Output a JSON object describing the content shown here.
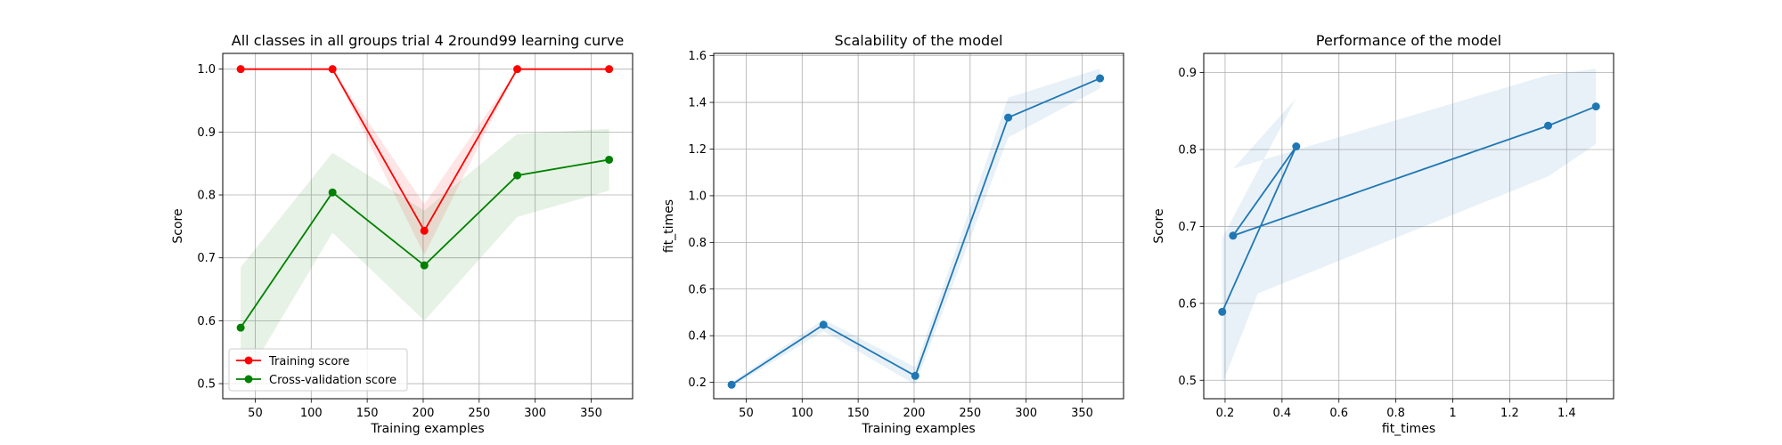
{
  "chart_data": [
    {
      "type": "line",
      "title": "All classes in all groups trial 4 2round99 learning curve",
      "xlabel": "Training examples",
      "ylabel": "Score",
      "xlim": [
        21,
        387
      ],
      "ylim": [
        0.476,
        1.025
      ],
      "xticks": [
        50,
        100,
        150,
        200,
        250,
        300,
        350
      ],
      "yticks": [
        0.5,
        0.6,
        0.7,
        0.8,
        0.9,
        1.0
      ],
      "ytick_decimals": 1,
      "grid": true,
      "legend_position": "lower-left",
      "series": [
        {
          "name": "Training score",
          "color": "#ff0000",
          "x": [
            37,
            119,
            201,
            284,
            366
          ],
          "y": [
            1.0,
            1.0,
            0.743,
            1.0,
            1.0
          ],
          "band_lower": [
            1.0,
            1.0,
            0.705,
            1.0,
            1.0
          ],
          "band_upper": [
            1.0,
            1.0,
            0.785,
            1.0,
            1.0
          ]
        },
        {
          "name": "Cross-validation score",
          "color": "#008000",
          "x": [
            37,
            119,
            201,
            284,
            366
          ],
          "y": [
            0.589,
            0.804,
            0.688,
            0.831,
            0.856
          ],
          "band_lower": [
            0.495,
            0.74,
            0.6,
            0.765,
            0.807
          ],
          "band_upper": [
            0.685,
            0.867,
            0.775,
            0.897,
            0.905
          ]
        }
      ]
    },
    {
      "type": "line",
      "title": "Scalability of the model",
      "xlabel": "Training examples",
      "ylabel": "fit_times",
      "xlim": [
        21,
        387
      ],
      "ylim": [
        0.13,
        1.61
      ],
      "xticks": [
        50,
        100,
        150,
        200,
        250,
        300,
        350
      ],
      "yticks": [
        0.2,
        0.4,
        0.6,
        0.8,
        1.0,
        1.2,
        1.4,
        1.6
      ],
      "ytick_decimals": 1,
      "grid": true,
      "series": [
        {
          "color": "#1f77b4",
          "x": [
            37,
            119,
            201,
            284,
            366
          ],
          "y": [
            0.19,
            0.447,
            0.228,
            1.335,
            1.503
          ],
          "band_lower": [
            0.18,
            0.42,
            0.19,
            1.25,
            1.46
          ],
          "band_upper": [
            0.2,
            0.47,
            0.265,
            1.42,
            1.545
          ]
        }
      ]
    },
    {
      "type": "line",
      "title": "Performance of the model",
      "xlabel": "fit_times",
      "ylabel": "Score",
      "xlim": [
        0.125,
        1.565
      ],
      "ylim": [
        0.476,
        0.925
      ],
      "xticks": [
        0.2,
        0.4,
        0.6,
        0.8,
        1.0,
        1.2,
        1.4
      ],
      "yticks": [
        0.5,
        0.6,
        0.7,
        0.8,
        0.9
      ],
      "ytick_decimals": 1,
      "grid": true,
      "series": [
        {
          "color": "#1f77b4",
          "x": [
            0.19,
            0.45,
            0.228,
            1.335,
            1.503
          ],
          "y": [
            0.589,
            0.804,
            0.688,
            0.831,
            0.856
          ],
          "band_lower": [
            0.495,
            0.74,
            0.6,
            0.765,
            0.807
          ],
          "band_upper": [
            0.685,
            0.867,
            0.775,
            0.897,
            0.905
          ]
        }
      ]
    }
  ]
}
